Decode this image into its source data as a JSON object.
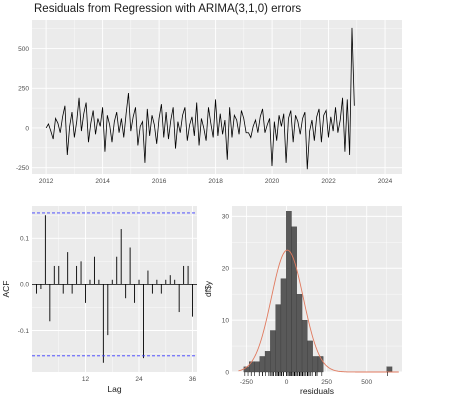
{
  "chart_data": [
    {
      "type": "line",
      "title": "Residuals from Regression with ARIMA(3,1,0) errors",
      "xlabel": "",
      "ylabel": "",
      "xlim": [
        2011.5,
        2024.6
      ],
      "ylim": [
        -290,
        680
      ],
      "xticks": [
        "2012",
        "2014",
        "2016",
        "2018",
        "2020",
        "2022",
        "2024"
      ],
      "yticks": [
        "-250",
        "0",
        "250",
        "500"
      ],
      "grid": true,
      "colors": {
        "panel": "#ebebeb",
        "grid": "#ffffff",
        "line": "#000000"
      },
      "x_start": 2012.0,
      "x_step": 0.0833,
      "values": [
        0,
        25,
        -20,
        -70,
        60,
        30,
        -30,
        70,
        140,
        -170,
        10,
        100,
        -60,
        40,
        190,
        -20,
        90,
        160,
        -90,
        30,
        110,
        -40,
        60,
        10,
        130,
        -150,
        80,
        20,
        -90,
        40,
        100,
        -30,
        60,
        -60,
        90,
        220,
        -20,
        70,
        130,
        -110,
        10,
        40,
        -220,
        120,
        -50,
        80,
        20,
        -100,
        60,
        150,
        -60,
        100,
        -70,
        50,
        130,
        -130,
        40,
        -30,
        80,
        130,
        -80,
        20,
        70,
        -50,
        160,
        -110,
        60,
        0,
        -80,
        130,
        30,
        -60,
        180,
        -50,
        90,
        -40,
        50,
        -200,
        130,
        -60,
        80,
        50,
        -40,
        110,
        60,
        -30,
        -30,
        -60,
        10,
        50,
        -30,
        70,
        120,
        -30,
        20,
        60,
        -240,
        40,
        -80,
        80,
        10,
        90,
        -220,
        60,
        110,
        -90,
        80,
        40,
        -40,
        60,
        100,
        -260,
        -20,
        50,
        -80,
        70,
        120,
        -90,
        80,
        110,
        -60,
        70,
        -20,
        130,
        -30,
        50,
        190,
        -150,
        180,
        -170,
        630,
        140
      ]
    },
    {
      "type": "bar",
      "title": "",
      "xlabel": "Lag",
      "ylabel": "ACF",
      "xlim": [
        0,
        37
      ],
      "ylim": [
        -0.19,
        0.17
      ],
      "xticks": [
        "12",
        "24",
        "36"
      ],
      "yticks": [
        "-0.1",
        "0.0",
        "0.1"
      ],
      "conf_limit": 0.155,
      "grid": true,
      "colors": {
        "panel": "#ebebeb",
        "grid": "#ffffff",
        "bar": "#000000",
        "conf": "#3b3bff"
      },
      "lags": [
        1,
        2,
        3,
        4,
        5,
        6,
        7,
        8,
        9,
        10,
        11,
        12,
        13,
        14,
        15,
        16,
        17,
        18,
        19,
        20,
        21,
        22,
        23,
        24,
        25,
        26,
        27,
        28,
        29,
        30,
        31,
        32,
        33,
        34,
        35,
        36
      ],
      "values": [
        -0.02,
        -0.01,
        0.15,
        -0.08,
        0.04,
        0.04,
        -0.02,
        0.07,
        -0.02,
        0.04,
        0.05,
        -0.04,
        0.01,
        0.06,
        0.01,
        -0.17,
        -0.11,
        0.01,
        0.06,
        0.12,
        -0.03,
        0.08,
        -0.04,
        0.01,
        -0.16,
        0.03,
        -0.02,
        0.01,
        -0.02,
        0.01,
        0.02,
        0.01,
        -0.06,
        0.04,
        0.04,
        -0.07
      ]
    },
    {
      "type": "histogram",
      "title": "",
      "xlabel": "residuals",
      "ylabel": "df$y",
      "xlim": [
        -340,
        720
      ],
      "ylim": [
        0,
        32
      ],
      "xticks": [
        "-250",
        "0",
        "250",
        "500"
      ],
      "yticks": [
        "0",
        "10",
        "20",
        "30"
      ],
      "grid": true,
      "colors": {
        "panel": "#ebebeb",
        "grid": "#ffffff",
        "bar": "#595959",
        "bar_edge": "#333333",
        "density": "#e07a5f",
        "rug": "#000000"
      },
      "bin_width": 33,
      "bin_starts": [
        -266,
        -233,
        -200,
        -167,
        -134,
        -101,
        -68,
        -35,
        -2,
        31,
        64,
        97,
        130,
        163,
        196,
        229,
        262,
        295,
        328,
        361,
        394,
        427,
        460,
        493,
        526,
        559,
        592,
        625
      ],
      "counts": [
        1,
        2,
        2,
        3,
        4,
        8,
        13,
        18,
        31,
        28,
        15,
        10,
        6,
        3,
        3,
        0,
        0,
        0,
        0,
        0,
        0,
        0,
        0,
        0,
        0,
        0,
        0,
        1
      ],
      "density_mean": 5,
      "density_sd": 100,
      "density_peak_count": 23.5
    }
  ]
}
